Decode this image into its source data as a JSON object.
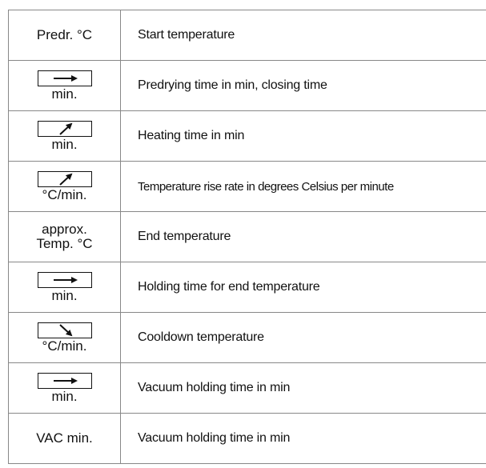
{
  "table": {
    "rows": [
      {
        "symbol": "Predr. °C",
        "description": "Start temperature"
      },
      {
        "symbol": "min.",
        "description": "Predrying time in min, closing time"
      },
      {
        "symbol": "min.",
        "description": "Heating time in min"
      },
      {
        "symbol": "°C/min.",
        "description": "Temperature rise rate in degrees Celsius per minute"
      },
      {
        "symbol": [
          "approx.",
          "Temp. °C"
        ],
        "description": "End temperature"
      },
      {
        "symbol": "min.",
        "description": "Holding time for end temperature"
      },
      {
        "symbol": "°C/min.",
        "description": "Cooldown temperature"
      },
      {
        "symbol": "min.",
        "description": "Vacuum holding time in min"
      },
      {
        "symbol": "VAC min.",
        "description": "Vacuum holding time in min"
      }
    ]
  }
}
